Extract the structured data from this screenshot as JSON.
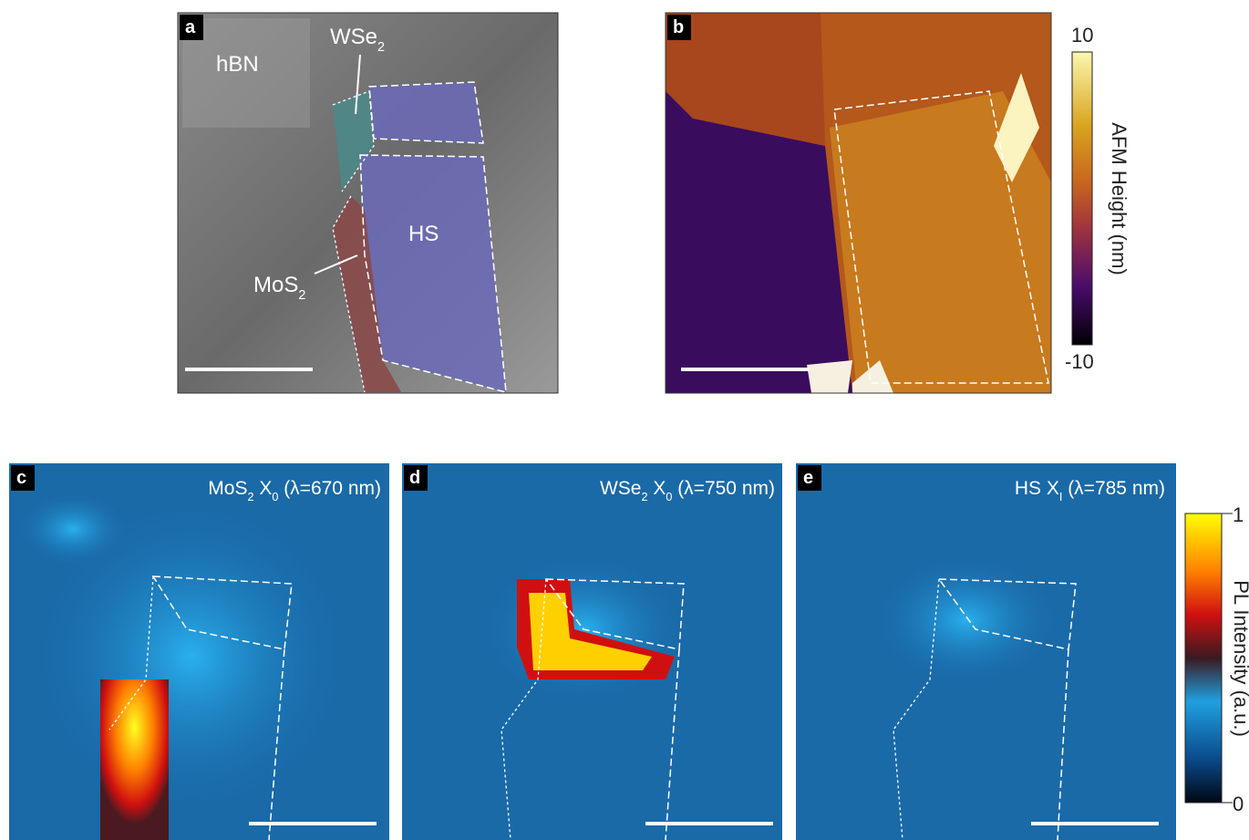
{
  "panels": [
    {
      "letter": "a",
      "labels": [
        {
          "parts": [
            {
              "text": "hBN",
              "sub": false
            }
          ]
        },
        {
          "parts": [
            {
              "text": "WSe",
              "sub": false
            },
            {
              "text": "2",
              "sub": true
            }
          ]
        },
        {
          "parts": [
            {
              "text": "HS",
              "sub": false
            }
          ]
        },
        {
          "parts": [
            {
              "text": "MoS",
              "sub": false
            },
            {
              "text": "2",
              "sub": true
            }
          ]
        }
      ]
    },
    {
      "letter": "b"
    },
    {
      "letter": "c",
      "title": [
        {
          "text": "MoS",
          "sub": false
        },
        {
          "text": "2",
          "sub": true
        },
        {
          "text": " X",
          "sub": false
        },
        {
          "text": "0",
          "sub": true
        },
        {
          "text": " (λ=670 nm)",
          "sub": false
        }
      ]
    },
    {
      "letter": "d",
      "title": [
        {
          "text": "WSe",
          "sub": false
        },
        {
          "text": "2",
          "sub": true
        },
        {
          "text": " X",
          "sub": false
        },
        {
          "text": "0",
          "sub": true
        },
        {
          "text": " (λ=750 nm)",
          "sub": false
        }
      ]
    },
    {
      "letter": "e",
      "title": [
        {
          "text": "HS X",
          "sub": false
        },
        {
          "text": "I",
          "sub": true
        },
        {
          "text": " (λ=785 nm)",
          "sub": false
        }
      ]
    }
  ],
  "afm_colorbar": {
    "label": "AFM Height (nm)",
    "max": "10",
    "min": "-10"
  },
  "pl_colorbar": {
    "label": "PL Intensity (a.u.)",
    "max": "1",
    "min": "0"
  }
}
